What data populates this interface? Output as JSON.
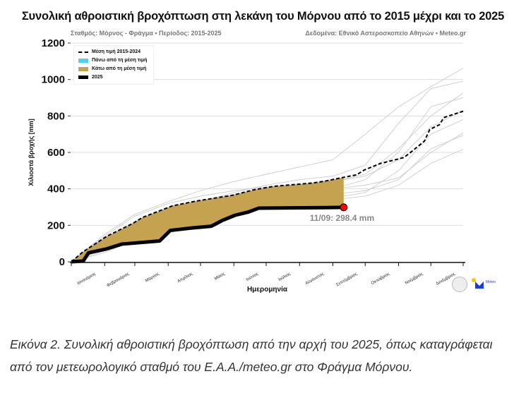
{
  "title": "Συνολική αθροιστική βροχόπτωση στη λεκάνη του Μόρνου από το 2015 μέχρι και το 2025",
  "subtitle_left": "Σταθμός: Μόρνος - Φράγμα • Περίοδος: 2015-2025",
  "subtitle_right": "Δεδομένα: Εθνικό Αστεροσκοπείο Αθηνών • Meteo.gr",
  "caption": "Εικόνα 2. Συνολική αθροιστική βροχόπτωση από την αρχή του 2025, όπως καταγράφεται από τον μετεωρολογικό σταθμό του Ε.Α.Α./meteo.gr στο Φράγμα Μόρνου.",
  "logos": {
    "naa": "Εθνικό Αστεροσκοπείο Αθηνών",
    "meteo": "Meteo"
  },
  "chart_data": {
    "type": "line",
    "xlabel": "Ημερομηνία",
    "ylabel": "Χιλιοστά βροχής [mm]",
    "ylim": [
      0,
      1200
    ],
    "yticks": [
      0,
      200,
      400,
      600,
      800,
      1000,
      1200
    ],
    "xticks": [
      "Ιανουάριος",
      "Φεβρουάριος",
      "Μάρτιος",
      "Απρίλιος",
      "Μάιος",
      "Ιούνιος",
      "Ιούλιος",
      "Αύγουστος",
      "Σεπτέμβριος",
      "Οκτώβριος",
      "Νοέμβριος",
      "Δεκέμβριος"
    ],
    "grid": "horizontal",
    "legend_position": "top-left",
    "legend": [
      {
        "label": "Μέση τιμή 2015-2024",
        "style": "dashed",
        "color": "#000000"
      },
      {
        "label": "Πάνω από τη μέση τιμή",
        "style": "fill",
        "color": "#4fd1f5"
      },
      {
        "label": "Κάτω από τη μέση τιμή",
        "style": "fill",
        "color": "#c4a24f"
      },
      {
        "label": "2025",
        "style": "thick",
        "color": "#000000"
      }
    ],
    "mean": {
      "color": "#000000",
      "points": [
        [
          "01/01",
          0
        ],
        [
          "12/01",
          55
        ],
        [
          "03/02",
          140
        ],
        [
          "27/02",
          210
        ],
        [
          "08/03",
          243
        ],
        [
          "05/04",
          307
        ],
        [
          "27/04",
          333
        ],
        [
          "31/05",
          365
        ],
        [
          "19/06",
          394
        ],
        [
          "08/07",
          414
        ],
        [
          "13/08",
          432
        ],
        [
          "25/08",
          443
        ],
        [
          "10/09",
          462
        ],
        [
          "23/09",
          477
        ],
        [
          "30/09",
          503
        ],
        [
          "15/10",
          539
        ],
        [
          "06/11",
          572
        ],
        [
          "13/11",
          604
        ],
        [
          "25/11",
          662
        ],
        [
          "30/11",
          726
        ],
        [
          "09/12",
          752
        ],
        [
          "13/12",
          791
        ],
        [
          "31/12",
          826
        ]
      ]
    },
    "current": {
      "color": "#000000",
      "points": [
        [
          "01/01",
          0
        ],
        [
          "12/01",
          4
        ],
        [
          "17/01",
          49
        ],
        [
          "03/02",
          71
        ],
        [
          "17/02",
          97
        ],
        [
          "24/03",
          114
        ],
        [
          "03/04",
          172
        ],
        [
          "22/04",
          185
        ],
        [
          "11/05",
          195
        ],
        [
          "21/05",
          226
        ],
        [
          "02/06",
          255
        ],
        [
          "14/06",
          272
        ],
        [
          "24/06",
          294
        ],
        [
          "25/08",
          297
        ],
        [
          "11/09",
          298.4
        ]
      ]
    },
    "annotation": {
      "text": "11/09: 298.4 mm",
      "date": "11/09",
      "value": 298.4,
      "marker_color": "#ff0000"
    },
    "past_years": {
      "color": "#cccccc",
      "dates": [
        "01/01",
        "01/02",
        "01/03",
        "01/04",
        "01/05",
        "01/06",
        "01/07",
        "01/08",
        "01/09",
        "01/10",
        "01/11",
        "01/12",
        "31/12"
      ],
      "values": [
        [
          0,
          150,
          260,
          330,
          390,
          440,
          480,
          520,
          560,
          700,
          850,
          960,
          1062
        ],
        [
          0,
          100,
          220,
          290,
          330,
          380,
          420,
          450,
          470,
          530,
          760,
          950,
          991
        ],
        [
          0,
          140,
          250,
          320,
          360,
          390,
          410,
          420,
          440,
          480,
          620,
          800,
          926
        ],
        [
          0,
          80,
          180,
          250,
          290,
          320,
          350,
          380,
          400,
          450,
          600,
          850,
          901
        ],
        [
          0,
          120,
          200,
          280,
          330,
          370,
          400,
          420,
          440,
          470,
          560,
          740,
          830
        ],
        [
          0,
          70,
          160,
          230,
          260,
          290,
          310,
          330,
          350,
          380,
          500,
          700,
          780
        ],
        [
          0,
          90,
          170,
          240,
          290,
          330,
          360,
          380,
          400,
          420,
          460,
          600,
          707
        ],
        [
          0,
          60,
          150,
          220,
          270,
          300,
          330,
          350,
          370,
          390,
          450,
          620,
          694
        ],
        [
          0,
          50,
          120,
          190,
          240,
          280,
          300,
          320,
          340,
          360,
          420,
          540,
          617
        ]
      ]
    }
  }
}
